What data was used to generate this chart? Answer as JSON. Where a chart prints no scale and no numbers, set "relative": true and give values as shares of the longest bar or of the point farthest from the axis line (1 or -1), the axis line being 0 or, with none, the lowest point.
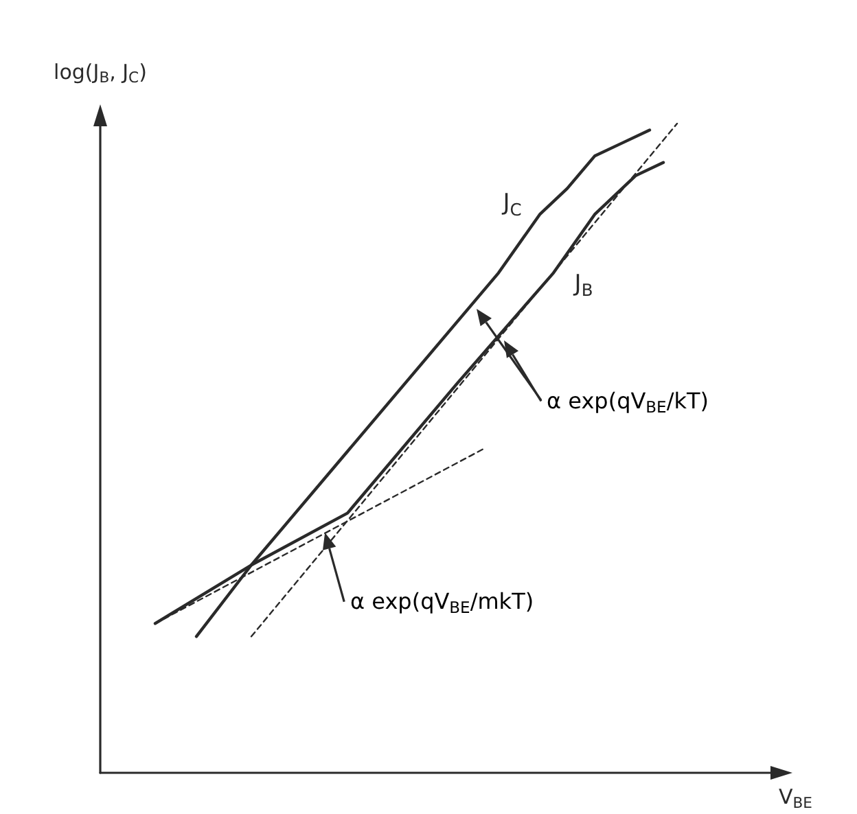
{
  "chart_data": {
    "type": "line",
    "relative": true,
    "xlabel": "V$_{BE}$",
    "ylabel": "log(J$_{B}$, J$_{C}$)",
    "legend": false,
    "marker": "none",
    "categories": [
      null,
      null,
      null,
      null,
      null,
      null,
      null,
      null,
      null,
      null,
      null,
      null,
      null,
      null,
      null,
      null,
      null,
      null,
      null,
      null,
      null,
      null,
      null,
      null,
      null,
      null,
      null,
      null,
      null,
      null,
      null,
      null,
      null,
      null,
      null,
      null,
      null,
      null,
      null,
      null,
      null,
      null,
      null,
      null,
      null,
      null,
      null,
      null,
      null,
      null
    ],
    "series": [
      {
        "name": "J$_{C}$",
        "color": "#2a2a2a",
        "line_style": "solid",
        "values": [
          null,
          null,
          null,
          null,
          null,
          null,
          null,
          0.21,
          null,
          null,
          null,
          0.32,
          null,
          null,
          null,
          null,
          null,
          null,
          null,
          null,
          null,
          null,
          null,
          null,
          null,
          null,
          null,
          null,
          null,
          0.77,
          null,
          null,
          0.86,
          null,
          0.9,
          null,
          0.95,
          null,
          0.97,
          null,
          0.99,
          null,
          null,
          null,
          null,
          null,
          null,
          null,
          null,
          null
        ]
      },
      {
        "name": "J$_{B}$",
        "color": "#2a2a2a",
        "line_style": "solid",
        "values": [
          null,
          null,
          null,
          null,
          0.23,
          null,
          null,
          null,
          null,
          null,
          null,
          0.32,
          null,
          null,
          null,
          null,
          null,
          null,
          0.4,
          null,
          null,
          null,
          null,
          null,
          null,
          null,
          0.6,
          null,
          null,
          null,
          null,
          null,
          null,
          0.77,
          null,
          null,
          0.86,
          null,
          null,
          0.92,
          null,
          0.94,
          null,
          null,
          null,
          null,
          null,
          null,
          null,
          null
        ]
      },
      {
        "color": "#2a2a2a",
        "line_style": "dashed",
        "values": [
          null,
          null,
          null,
          null,
          0.23,
          null,
          null,
          null,
          null,
          null,
          null,
          null,
          null,
          null,
          null,
          null,
          null,
          null,
          null,
          null,
          null,
          null,
          null,
          null,
          null,
          null,
          null,
          null,
          0.5,
          null,
          null,
          null,
          null,
          null,
          null,
          null,
          null,
          null,
          null,
          null,
          null,
          null,
          null,
          null,
          null,
          null,
          null,
          null,
          null,
          null
        ]
      },
      {
        "color": "#2a2a2a",
        "line_style": "dashed",
        "values": [
          null,
          null,
          null,
          null,
          null,
          null,
          null,
          null,
          null,
          null,
          null,
          0.21,
          null,
          null,
          null,
          null,
          null,
          null,
          null,
          null,
          null,
          null,
          null,
          null,
          null,
          null,
          null,
          null,
          null,
          null,
          null,
          null,
          null,
          null,
          null,
          null,
          null,
          null,
          null,
          null,
          null,
          null,
          1.0,
          null,
          null,
          null,
          null,
          null,
          null,
          null
        ]
      }
    ],
    "annotations": [
      "α exp(qV$_{BE}$/kT)",
      "α exp(qV$_{BE}$/mkT)"
    ]
  }
}
